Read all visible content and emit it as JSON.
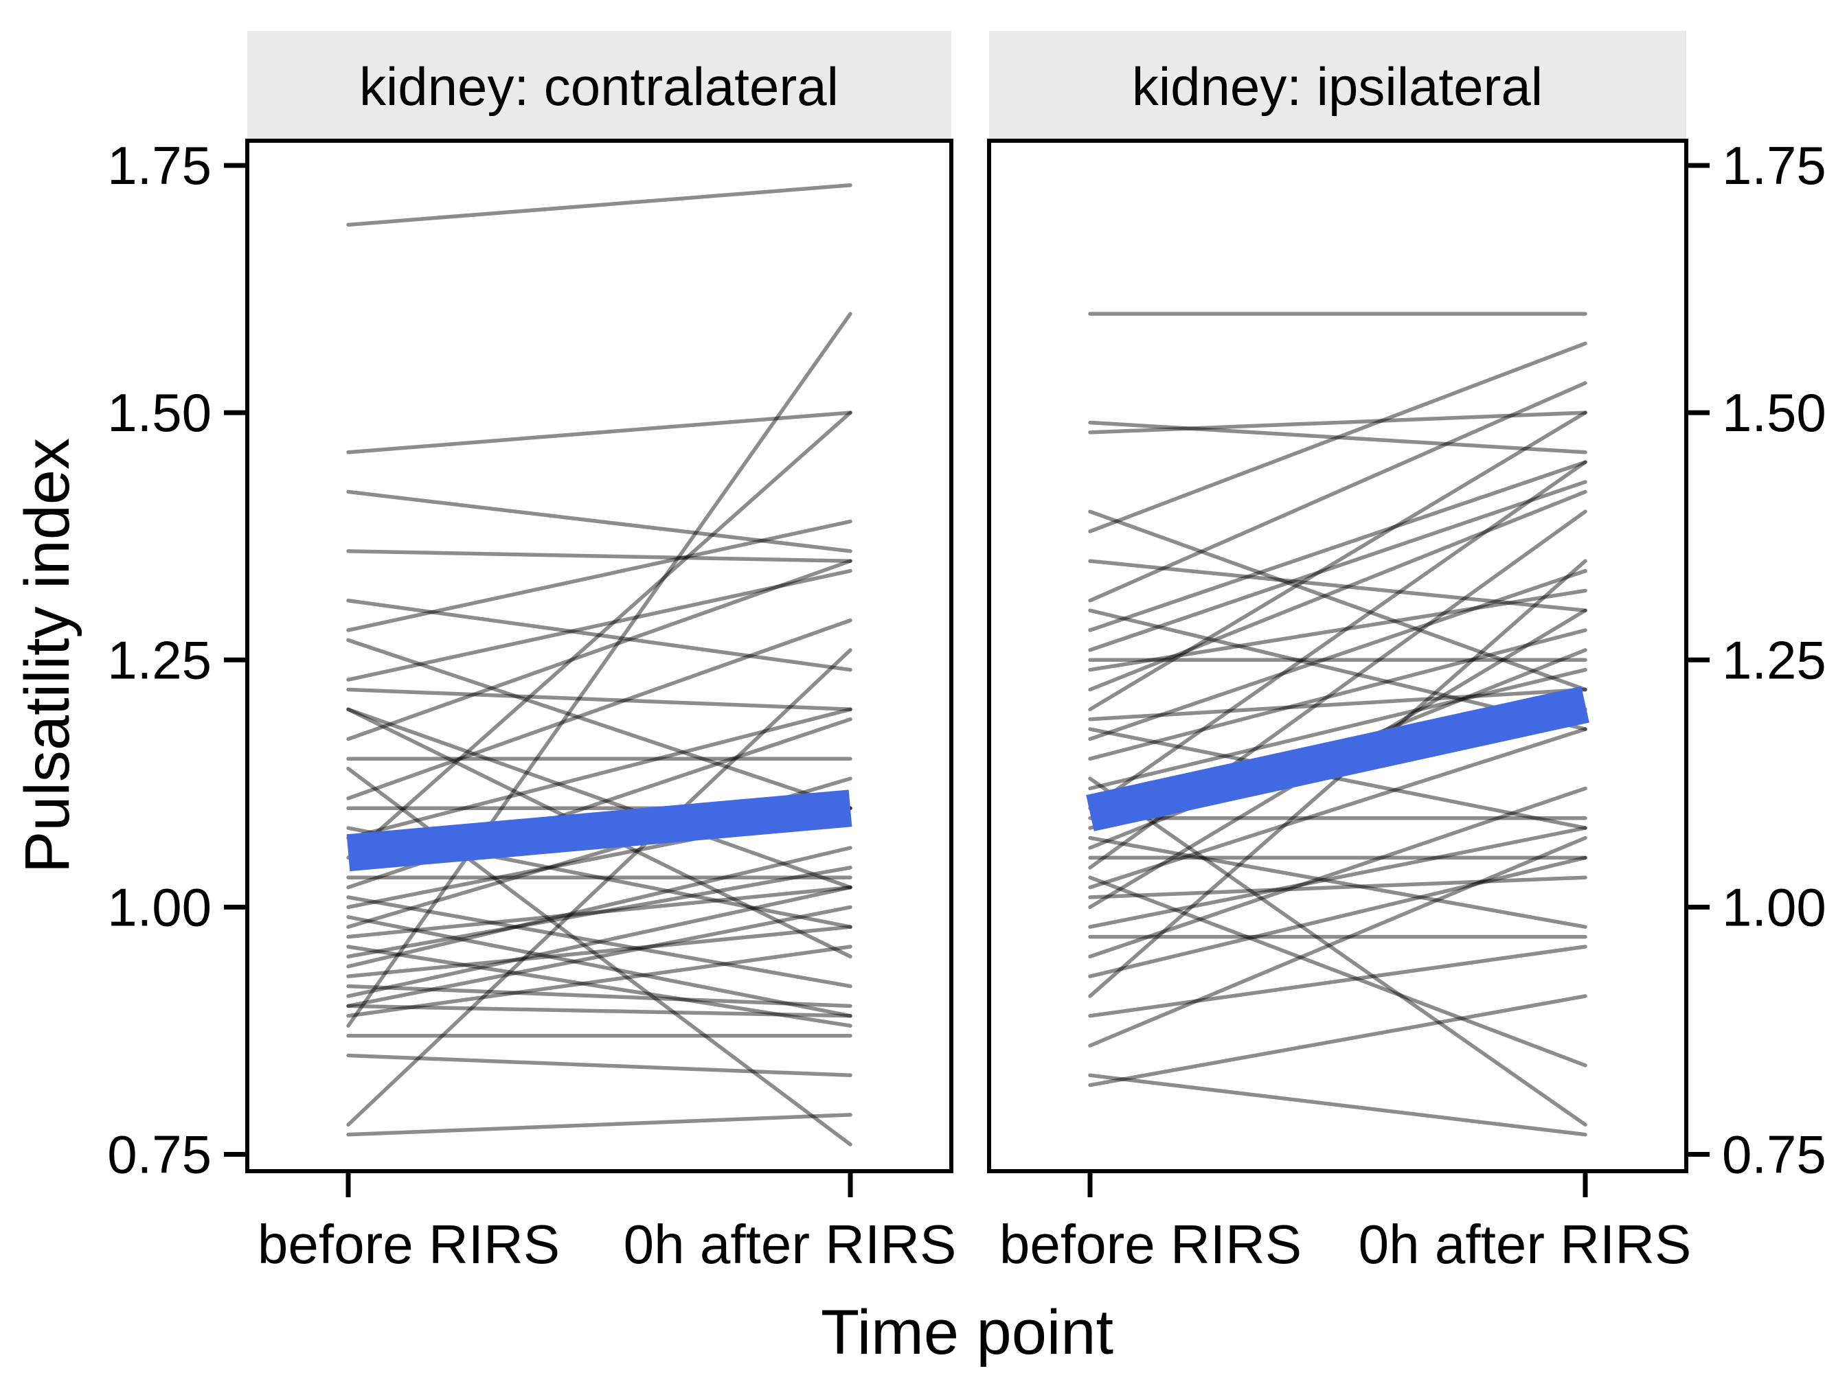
{
  "chart_data": {
    "type": "line",
    "subtype": "paired-slope-spaghetti",
    "title": "",
    "xlabel": "Time point",
    "ylabel": "Pulsatility index",
    "x_categories": [
      "before RIRS",
      "0h after RIRS"
    ],
    "y_ticks": [
      "0.75",
      "1.00",
      "1.25",
      "1.50",
      "1.75"
    ],
    "y_tick_values": [
      0.75,
      1.0,
      1.25,
      1.5,
      1.75
    ],
    "ylim": [
      0.733,
      1.775
    ],
    "grid": "off",
    "legend": "none",
    "colors": {
      "mean_line": "#4169E1",
      "individual_line": "#000000",
      "individual_opacity": 0.45,
      "strip_fill": "#EAEAEA",
      "panel_border": "#000000",
      "background": "#FFFFFF"
    },
    "facets": [
      {
        "label": "kidney: contralateral",
        "mean": {
          "before": 1.055,
          "after": 1.1
        },
        "individuals": [
          [
            1.69,
            1.73
          ],
          [
            1.46,
            1.5
          ],
          [
            1.42,
            1.36
          ],
          [
            1.36,
            1.35
          ],
          [
            1.31,
            1.24
          ],
          [
            1.28,
            1.39
          ],
          [
            1.27,
            1.1
          ],
          [
            1.23,
            1.34
          ],
          [
            1.22,
            1.2
          ],
          [
            1.2,
            1.02
          ],
          [
            1.2,
            0.95
          ],
          [
            1.17,
            1.35
          ],
          [
            1.15,
            1.15
          ],
          [
            1.14,
            0.76
          ],
          [
            1.11,
            1.29
          ],
          [
            1.1,
            1.1
          ],
          [
            1.08,
            0.98
          ],
          [
            1.07,
            1.2
          ],
          [
            1.05,
            1.5
          ],
          [
            1.03,
            1.03
          ],
          [
            1.02,
            1.19
          ],
          [
            1.01,
            0.92
          ],
          [
            1.0,
            1.1
          ],
          [
            0.99,
            0.89
          ],
          [
            0.98,
            1.13
          ],
          [
            0.97,
            1.02
          ],
          [
            0.96,
            0.88
          ],
          [
            0.95,
            1.04
          ],
          [
            0.94,
            1.06
          ],
          [
            0.93,
            0.98
          ],
          [
            0.92,
            0.9
          ],
          [
            0.91,
            1.02
          ],
          [
            0.9,
            0.89
          ],
          [
            0.9,
            1.0
          ],
          [
            0.89,
            0.96
          ],
          [
            0.88,
            1.6
          ],
          [
            0.87,
            0.87
          ],
          [
            0.85,
            0.83
          ],
          [
            0.78,
            1.26
          ],
          [
            0.77,
            0.79
          ]
        ]
      },
      {
        "label": "kidney: ipsilateral",
        "mean": {
          "before": 1.095,
          "after": 1.205
        },
        "individuals": [
          [
            1.6,
            1.6
          ],
          [
            1.49,
            1.46
          ],
          [
            1.48,
            1.5
          ],
          [
            1.4,
            1.22
          ],
          [
            1.38,
            1.57
          ],
          [
            1.35,
            1.3
          ],
          [
            1.31,
            1.53
          ],
          [
            1.3,
            1.18
          ],
          [
            1.28,
            1.45
          ],
          [
            1.26,
            1.43
          ],
          [
            1.25,
            1.25
          ],
          [
            1.24,
            1.32
          ],
          [
            1.22,
            1.42
          ],
          [
            1.2,
            1.5
          ],
          [
            1.19,
            1.22
          ],
          [
            1.18,
            1.08
          ],
          [
            1.17,
            1.34
          ],
          [
            1.15,
            1.28
          ],
          [
            1.13,
            0.78
          ],
          [
            1.12,
            1.24
          ],
          [
            1.1,
            1.45
          ],
          [
            1.09,
            1.09
          ],
          [
            1.08,
            1.2
          ],
          [
            1.07,
            0.98
          ],
          [
            1.06,
            1.26
          ],
          [
            1.05,
            1.05
          ],
          [
            1.04,
            1.4
          ],
          [
            1.03,
            0.84
          ],
          [
            1.02,
            1.18
          ],
          [
            1.01,
            1.03
          ],
          [
            1.0,
            1.3
          ],
          [
            0.98,
            1.08
          ],
          [
            0.97,
            0.97
          ],
          [
            0.95,
            1.12
          ],
          [
            0.93,
            1.05
          ],
          [
            0.91,
            1.35
          ],
          [
            0.89,
            0.96
          ],
          [
            0.86,
            1.07
          ],
          [
            0.83,
            0.77
          ],
          [
            0.82,
            0.91
          ]
        ]
      }
    ]
  }
}
